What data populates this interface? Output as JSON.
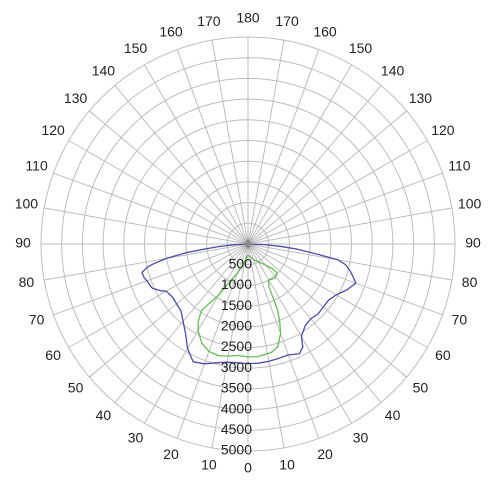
{
  "chart_data": {
    "type": "polar-line",
    "title": "",
    "angle_ticks_left": [
      "180",
      "170",
      "160",
      "150",
      "140",
      "130",
      "120",
      "110",
      "100",
      "90",
      "80",
      "70",
      "60",
      "50",
      "40",
      "30",
      "20",
      "10",
      "0"
    ],
    "angle_ticks_right": [
      "170",
      "160",
      "150",
      "140",
      "130",
      "120",
      "110",
      "100",
      "90",
      "80",
      "70",
      "60",
      "50",
      "40",
      "30",
      "20",
      "10"
    ],
    "radial_ticks": [
      "500",
      "1000",
      "1500",
      "2000",
      "2500",
      "3000",
      "3500",
      "4000",
      "4500",
      "5000"
    ],
    "angle_step_deg": 10,
    "radial_max": 5000,
    "grid": true,
    "colors": {
      "grid": "#bdbdbd",
      "series_a": "#4b4fa6",
      "series_b": "#66bb55"
    },
    "series": [
      {
        "color": "#4b4fa6",
        "points": [
          [
            -90,
            0
          ],
          [
            -87,
            350
          ],
          [
            -85,
            720
          ],
          [
            -83,
            1150
          ],
          [
            -82,
            1500
          ],
          [
            -80,
            2000
          ],
          [
            -78,
            2350
          ],
          [
            -77,
            2500
          ],
          [
            -75,
            2650
          ],
          [
            -72,
            2640
          ],
          [
            -70,
            2600
          ],
          [
            -67,
            2570
          ],
          [
            -65,
            2540
          ],
          [
            -62,
            2400
          ],
          [
            -60,
            2280
          ],
          [
            -55,
            2230
          ],
          [
            -50,
            2250
          ],
          [
            -45,
            2290
          ],
          [
            -40,
            2440
          ],
          [
            -35,
            2630
          ],
          [
            -30,
            2920
          ],
          [
            -25,
            3140
          ],
          [
            -20,
            3080
          ],
          [
            -15,
            2970
          ],
          [
            -10,
            2900
          ],
          [
            -5,
            2880
          ],
          [
            0,
            2890
          ],
          [
            5,
            2890
          ],
          [
            10,
            2880
          ],
          [
            15,
            2860
          ],
          [
            20,
            2850
          ],
          [
            25,
            2930
          ],
          [
            28,
            2820
          ],
          [
            30,
            2580
          ],
          [
            35,
            2410
          ],
          [
            40,
            2360
          ],
          [
            45,
            2390
          ],
          [
            50,
            2370
          ],
          [
            55,
            2370
          ],
          [
            60,
            2460
          ],
          [
            65,
            2630
          ],
          [
            70,
            2770
          ],
          [
            72,
            2690
          ],
          [
            75,
            2560
          ],
          [
            78,
            2410
          ],
          [
            80,
            2200
          ],
          [
            82,
            1600
          ],
          [
            84,
            1200
          ],
          [
            86,
            780
          ],
          [
            88,
            400
          ],
          [
            90,
            0
          ]
        ]
      },
      {
        "color": "#66bb55",
        "points": [
          [
            0,
            2730
          ],
          [
            -5,
            2700
          ],
          [
            -10,
            2750
          ],
          [
            -15,
            2790
          ],
          [
            -20,
            2760
          ],
          [
            -25,
            2640
          ],
          [
            -30,
            2410
          ],
          [
            -33,
            2200
          ],
          [
            -35,
            1960
          ],
          [
            -33,
            1700
          ],
          [
            -30,
            1430
          ],
          [
            -28,
            1200
          ],
          [
            -25,
            970
          ],
          [
            -20,
            750
          ],
          [
            -15,
            560
          ],
          [
            -10,
            400
          ],
          [
            -5,
            300
          ],
          [
            0,
            270
          ],
          [
            10,
            320
          ],
          [
            20,
            400
          ],
          [
            30,
            500
          ],
          [
            40,
            670
          ],
          [
            45,
            850
          ],
          [
            45,
            1000
          ],
          [
            38,
            1050
          ],
          [
            30,
            1000
          ],
          [
            26,
            1150
          ],
          [
            25,
            1470
          ],
          [
            24,
            1770
          ],
          [
            22,
            2050
          ],
          [
            20,
            2300
          ],
          [
            16,
            2590
          ],
          [
            12,
            2680
          ],
          [
            8,
            2700
          ],
          [
            5,
            2730
          ],
          [
            0,
            2730
          ]
        ]
      }
    ]
  }
}
